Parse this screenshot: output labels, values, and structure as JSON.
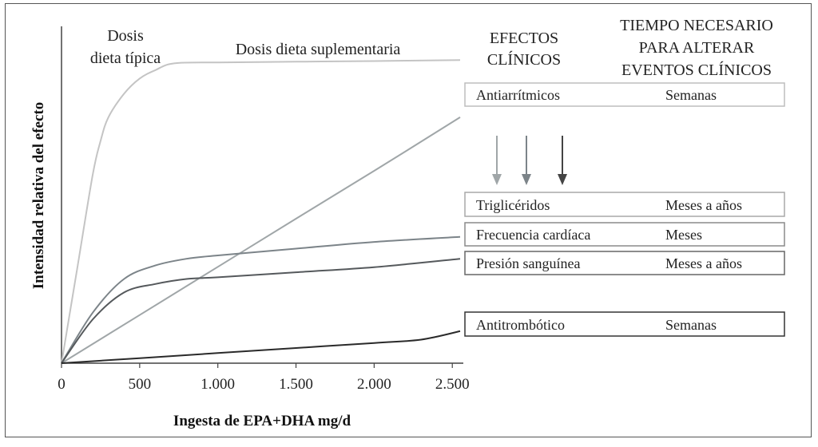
{
  "chart_data": {
    "type": "line",
    "xlabel": "Ingesta de EPA+DHA mg/d",
    "ylabel": "Intensidad relativa del efecto",
    "xlim": [
      0,
      2550
    ],
    "ylim": [
      0,
      1
    ],
    "x_ticks": [
      0,
      500,
      1000,
      1500,
      2000,
      2500
    ],
    "x_tick_labels": [
      "0",
      "500",
      "1.000",
      "1.500",
      "2.000",
      "2.500"
    ],
    "annotations": [
      {
        "id": "typical",
        "lines": [
          "Dosis",
          "dieta típica"
        ]
      },
      {
        "id": "supplement",
        "lines": [
          "Dosis dieta suplementaria"
        ]
      }
    ],
    "series": [
      {
        "id": "antiarrhythmic",
        "color": "#c4c4c4",
        "x": [
          0,
          100,
          200,
          250,
          300,
          400,
          500,
          600,
          720,
          1000,
          1500,
          2000,
          2550
        ],
        "y": [
          0,
          0.28,
          0.56,
          0.66,
          0.73,
          0.8,
          0.845,
          0.87,
          0.89,
          0.893,
          0.895,
          0.897,
          0.9
        ]
      },
      {
        "id": "triglycerides",
        "color": "#a0a6a8",
        "x": [
          0,
          500,
          1000,
          1500,
          2000,
          2550
        ],
        "y": [
          0,
          0.143,
          0.286,
          0.429,
          0.571,
          0.73
        ]
      },
      {
        "id": "heart_rate",
        "color": "#7c8489",
        "x": [
          0,
          200,
          400,
          600,
          800,
          1000,
          1500,
          2000,
          2550
        ],
        "y": [
          0,
          0.15,
          0.25,
          0.29,
          0.31,
          0.32,
          0.34,
          0.36,
          0.375
        ]
      },
      {
        "id": "blood_pressure",
        "color": "#55595c",
        "x": [
          0,
          200,
          400,
          600,
          800,
          1000,
          1500,
          2000,
          2550
        ],
        "y": [
          0,
          0.13,
          0.21,
          0.235,
          0.25,
          0.255,
          0.27,
          0.285,
          0.31
        ]
      },
      {
        "id": "antithrombotic",
        "color": "#2a2a2a",
        "x": [
          0,
          500,
          1000,
          1500,
          2000,
          2300,
          2550
        ],
        "y": [
          0,
          0.015,
          0.03,
          0.045,
          0.06,
          0.07,
          0.095
        ]
      }
    ]
  },
  "headers": {
    "clinical_effects": [
      "EFECTOS",
      "CLÍNICOS"
    ],
    "time_needed": [
      "TIEMPO NECESARIO",
      "PARA ALTERAR",
      "EVENTOS CLÍNICOS"
    ]
  },
  "effect_boxes": [
    {
      "id": "antiarrhythmic",
      "effect": "Antiarrítmicos",
      "time": "Semanas"
    },
    {
      "id": "triglycerides",
      "effect": "Triglicéridos",
      "time": "Meses a años"
    },
    {
      "id": "heart_rate",
      "effect": "Frecuencia cardíaca",
      "time": "Meses"
    },
    {
      "id": "blood_pressure",
      "effect": "Presión sanguínea",
      "time": "Meses a años"
    },
    {
      "id": "antithrombotic",
      "effect": "Antitrombótico",
      "time": "Semanas"
    }
  ],
  "arrows": [
    {
      "color": "#a0a6a8"
    },
    {
      "color": "#7c8489"
    },
    {
      "color": "#444444"
    }
  ]
}
